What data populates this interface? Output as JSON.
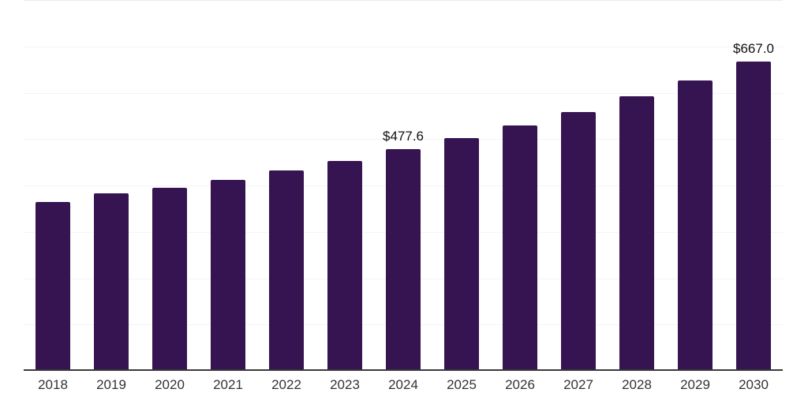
{
  "chart_data": {
    "type": "bar",
    "title": "",
    "xlabel": "",
    "ylabel": "",
    "categories": [
      "2018",
      "2019",
      "2020",
      "2021",
      "2022",
      "2023",
      "2024",
      "2025",
      "2026",
      "2027",
      "2028",
      "2029",
      "2030"
    ],
    "values": [
      365.0,
      382.5,
      395.2,
      411.5,
      432.9,
      452.9,
      477.6,
      502.1,
      528.9,
      558.9,
      592.3,
      627.0,
      667.0
    ],
    "labeled_points": [
      {
        "category": "2024",
        "label": "$477.6",
        "value": 477.6
      },
      {
        "category": "2030",
        "label": "$667.0",
        "value": 667.0
      }
    ],
    "value_prefix": "$",
    "ylim": [
      0,
      800
    ],
    "grid_step": 100,
    "grid": true,
    "legend_position": "none",
    "y_tick_labels_visible": false,
    "x_tick_labels_visible": true
  },
  "colors": {
    "background": "#ffffff",
    "bar": "#351451",
    "grid": "#f4f4f4",
    "grid_top": "#ececec",
    "axis": "#3a3a3a",
    "tick_label": "#333333",
    "data_label": "#111111"
  }
}
